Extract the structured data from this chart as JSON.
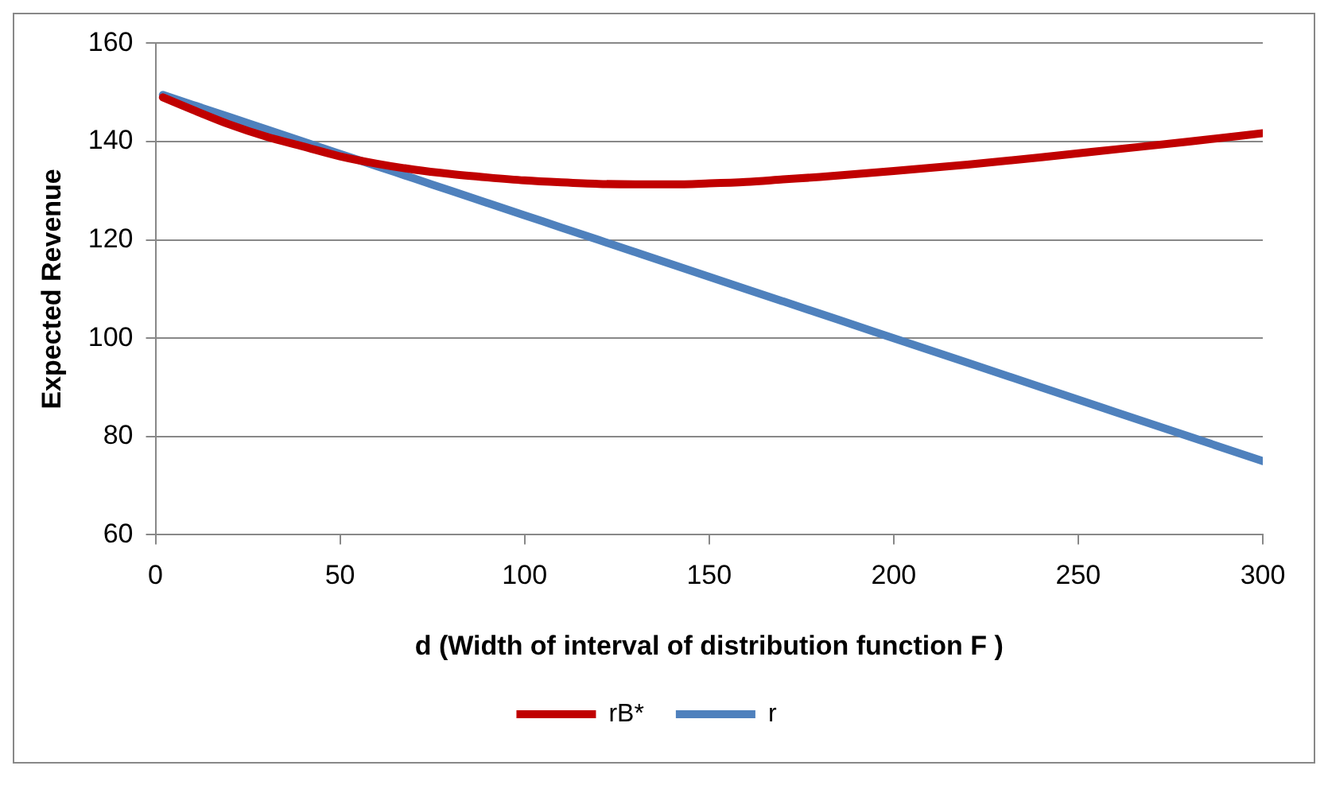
{
  "chart_data": {
    "type": "line",
    "xlabel": "d (Width of interval of distribution function F )",
    "ylabel": "Expected Revenue",
    "x": [
      2,
      10,
      20,
      30,
      40,
      50,
      60,
      70,
      80,
      90,
      100,
      110,
      120,
      130,
      140,
      150,
      160,
      170,
      180,
      190,
      200,
      220,
      240,
      260,
      280,
      300
    ],
    "series": [
      {
        "name": "rB*",
        "color": "#c00000",
        "values": [
          149,
          146.5,
          143.5,
          141,
          139,
          137,
          135.5,
          134.3,
          133.4,
          132.7,
          132.1,
          131.7,
          131.4,
          131.3,
          131.3,
          131.5,
          131.8,
          132.3,
          132.8,
          133.4,
          134,
          135.3,
          136.8,
          138.4,
          140,
          141.7
        ]
      },
      {
        "name": "r",
        "color": "#4f81bd",
        "values": [
          149.5,
          147.5,
          145,
          142.5,
          140,
          137.5,
          135,
          132.5,
          130,
          127.5,
          125,
          122.5,
          120,
          117.5,
          115,
          112.5,
          110,
          107.5,
          105,
          102.5,
          100,
          95,
          90,
          85,
          80,
          75
        ]
      }
    ],
    "xlim": [
      0,
      300
    ],
    "xticks": [
      0,
      50,
      100,
      150,
      200,
      250,
      300
    ],
    "ylim": [
      60,
      160
    ],
    "yticks": [
      60,
      80,
      100,
      120,
      140,
      160
    ],
    "grid": "y",
    "legend": "bottom",
    "marker": "none",
    "line_style": "solid"
  }
}
